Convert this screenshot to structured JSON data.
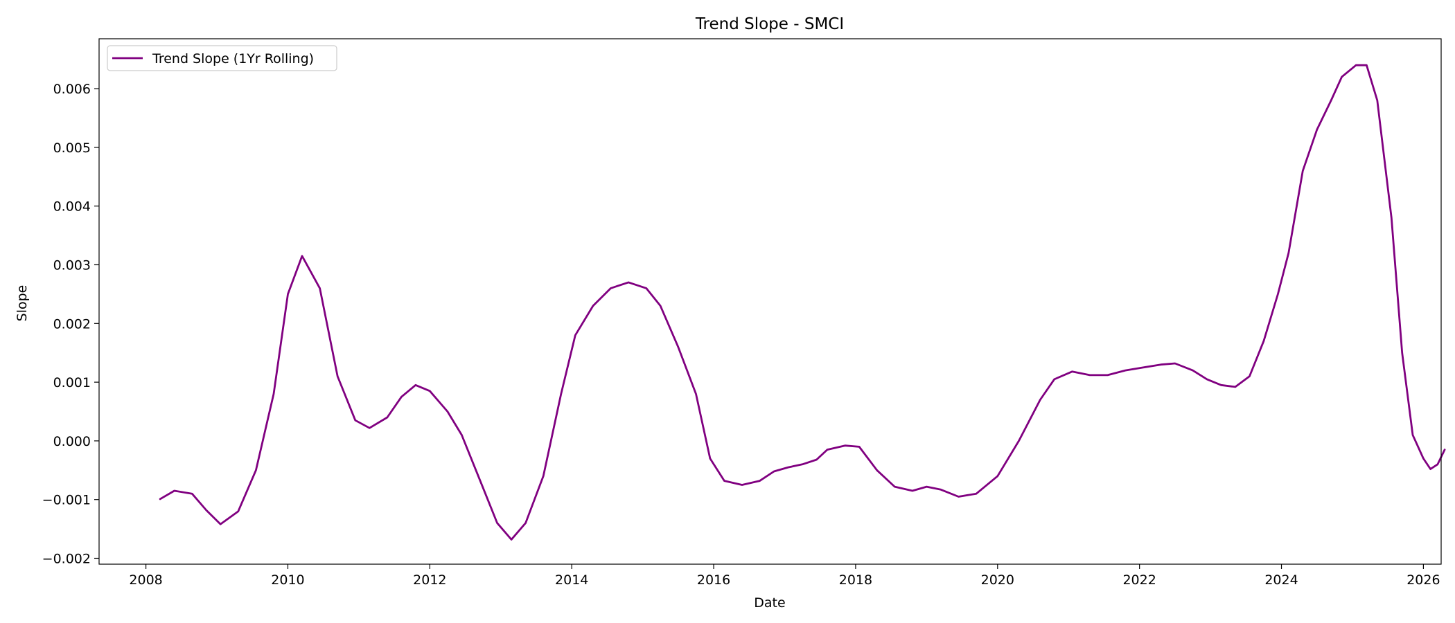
{
  "chart_data": {
    "type": "line",
    "title": "Trend Slope - SMCI",
    "xlabel": "Date",
    "ylabel": "Slope",
    "xlim": [
      2007.34,
      2026.25
    ],
    "ylim": [
      -0.0021,
      0.00685
    ],
    "x_ticks": [
      2008,
      2010,
      2012,
      2014,
      2016,
      2018,
      2020,
      2022,
      2024,
      2026
    ],
    "x_tick_labels": [
      "2008",
      "2010",
      "2012",
      "2014",
      "2016",
      "2018",
      "2020",
      "2022",
      "2024",
      "2026"
    ],
    "y_ticks": [
      -0.002,
      -0.001,
      0.0,
      0.001,
      0.002,
      0.003,
      0.004,
      0.005,
      0.006
    ],
    "y_tick_labels": [
      "−0.002",
      "−0.001",
      "0.000",
      "0.001",
      "0.002",
      "0.003",
      "0.004",
      "0.005",
      "0.006"
    ],
    "grid": false,
    "legend_position": "top-left",
    "series": [
      {
        "name": "Trend Slope (1Yr Rolling)",
        "color": "#800080",
        "points": [
          [
            2008.2,
            -0.00099
          ],
          [
            2008.4,
            -0.00085
          ],
          [
            2008.65,
            -0.0009
          ],
          [
            2008.85,
            -0.00118
          ],
          [
            2009.05,
            -0.00142
          ],
          [
            2009.3,
            -0.0012
          ],
          [
            2009.55,
            -0.0005
          ],
          [
            2009.8,
            0.0008
          ],
          [
            2010.0,
            0.0025
          ],
          [
            2010.2,
            0.00315
          ],
          [
            2010.45,
            0.0026
          ],
          [
            2010.7,
            0.0011
          ],
          [
            2010.95,
            0.00035
          ],
          [
            2011.15,
            0.00022
          ],
          [
            2011.4,
            0.0004
          ],
          [
            2011.6,
            0.00075
          ],
          [
            2011.8,
            0.00095
          ],
          [
            2012.0,
            0.00085
          ],
          [
            2012.25,
            0.0005
          ],
          [
            2012.45,
            0.0001
          ],
          [
            2012.75,
            -0.0008
          ],
          [
            2012.95,
            -0.0014
          ],
          [
            2013.15,
            -0.00168
          ],
          [
            2013.35,
            -0.0014
          ],
          [
            2013.6,
            -0.0006
          ],
          [
            2013.85,
            0.0008
          ],
          [
            2014.05,
            0.0018
          ],
          [
            2014.3,
            0.0023
          ],
          [
            2014.55,
            0.0026
          ],
          [
            2014.8,
            0.0027
          ],
          [
            2015.05,
            0.0026
          ],
          [
            2015.25,
            0.0023
          ],
          [
            2015.5,
            0.0016
          ],
          [
            2015.75,
            0.0008
          ],
          [
            2015.95,
            -0.0003
          ],
          [
            2016.15,
            -0.00068
          ],
          [
            2016.4,
            -0.00075
          ],
          [
            2016.65,
            -0.00068
          ],
          [
            2016.85,
            -0.00052
          ],
          [
            2017.05,
            -0.00045
          ],
          [
            2017.25,
            -0.0004
          ],
          [
            2017.45,
            -0.00032
          ],
          [
            2017.6,
            -0.00015
          ],
          [
            2017.85,
            -8e-05
          ],
          [
            2018.05,
            -0.0001
          ],
          [
            2018.3,
            -0.0005
          ],
          [
            2018.55,
            -0.00078
          ],
          [
            2018.8,
            -0.00085
          ],
          [
            2019.0,
            -0.00078
          ],
          [
            2019.2,
            -0.00083
          ],
          [
            2019.45,
            -0.00095
          ],
          [
            2019.7,
            -0.0009
          ],
          [
            2020.0,
            -0.0006
          ],
          [
            2020.3,
            0.0
          ],
          [
            2020.6,
            0.0007
          ],
          [
            2020.8,
            0.00105
          ],
          [
            2021.05,
            0.00118
          ],
          [
            2021.3,
            0.00112
          ],
          [
            2021.55,
            0.00112
          ],
          [
            2021.8,
            0.0012
          ],
          [
            2022.05,
            0.00125
          ],
          [
            2022.3,
            0.0013
          ],
          [
            2022.5,
            0.00132
          ],
          [
            2022.75,
            0.0012
          ],
          [
            2022.95,
            0.00105
          ],
          [
            2023.15,
            0.00095
          ],
          [
            2023.35,
            0.00092
          ],
          [
            2023.55,
            0.0011
          ],
          [
            2023.75,
            0.0017
          ],
          [
            2023.95,
            0.0025
          ],
          [
            2024.1,
            0.0032
          ],
          [
            2024.3,
            0.0046
          ],
          [
            2024.5,
            0.0053
          ],
          [
            2024.7,
            0.0058
          ],
          [
            2024.85,
            0.0062
          ],
          [
            2025.05,
            0.0064
          ],
          [
            2025.2,
            0.0064
          ],
          [
            2025.35,
            0.0058
          ],
          [
            2025.55,
            0.0038
          ],
          [
            2025.7,
            0.0015
          ],
          [
            2025.85,
            0.0001
          ],
          [
            2026.0,
            -0.0003
          ],
          [
            2026.1,
            -0.00048
          ],
          [
            2026.2,
            -0.0004
          ],
          [
            2026.3,
            -0.00015
          ]
        ]
      }
    ]
  }
}
